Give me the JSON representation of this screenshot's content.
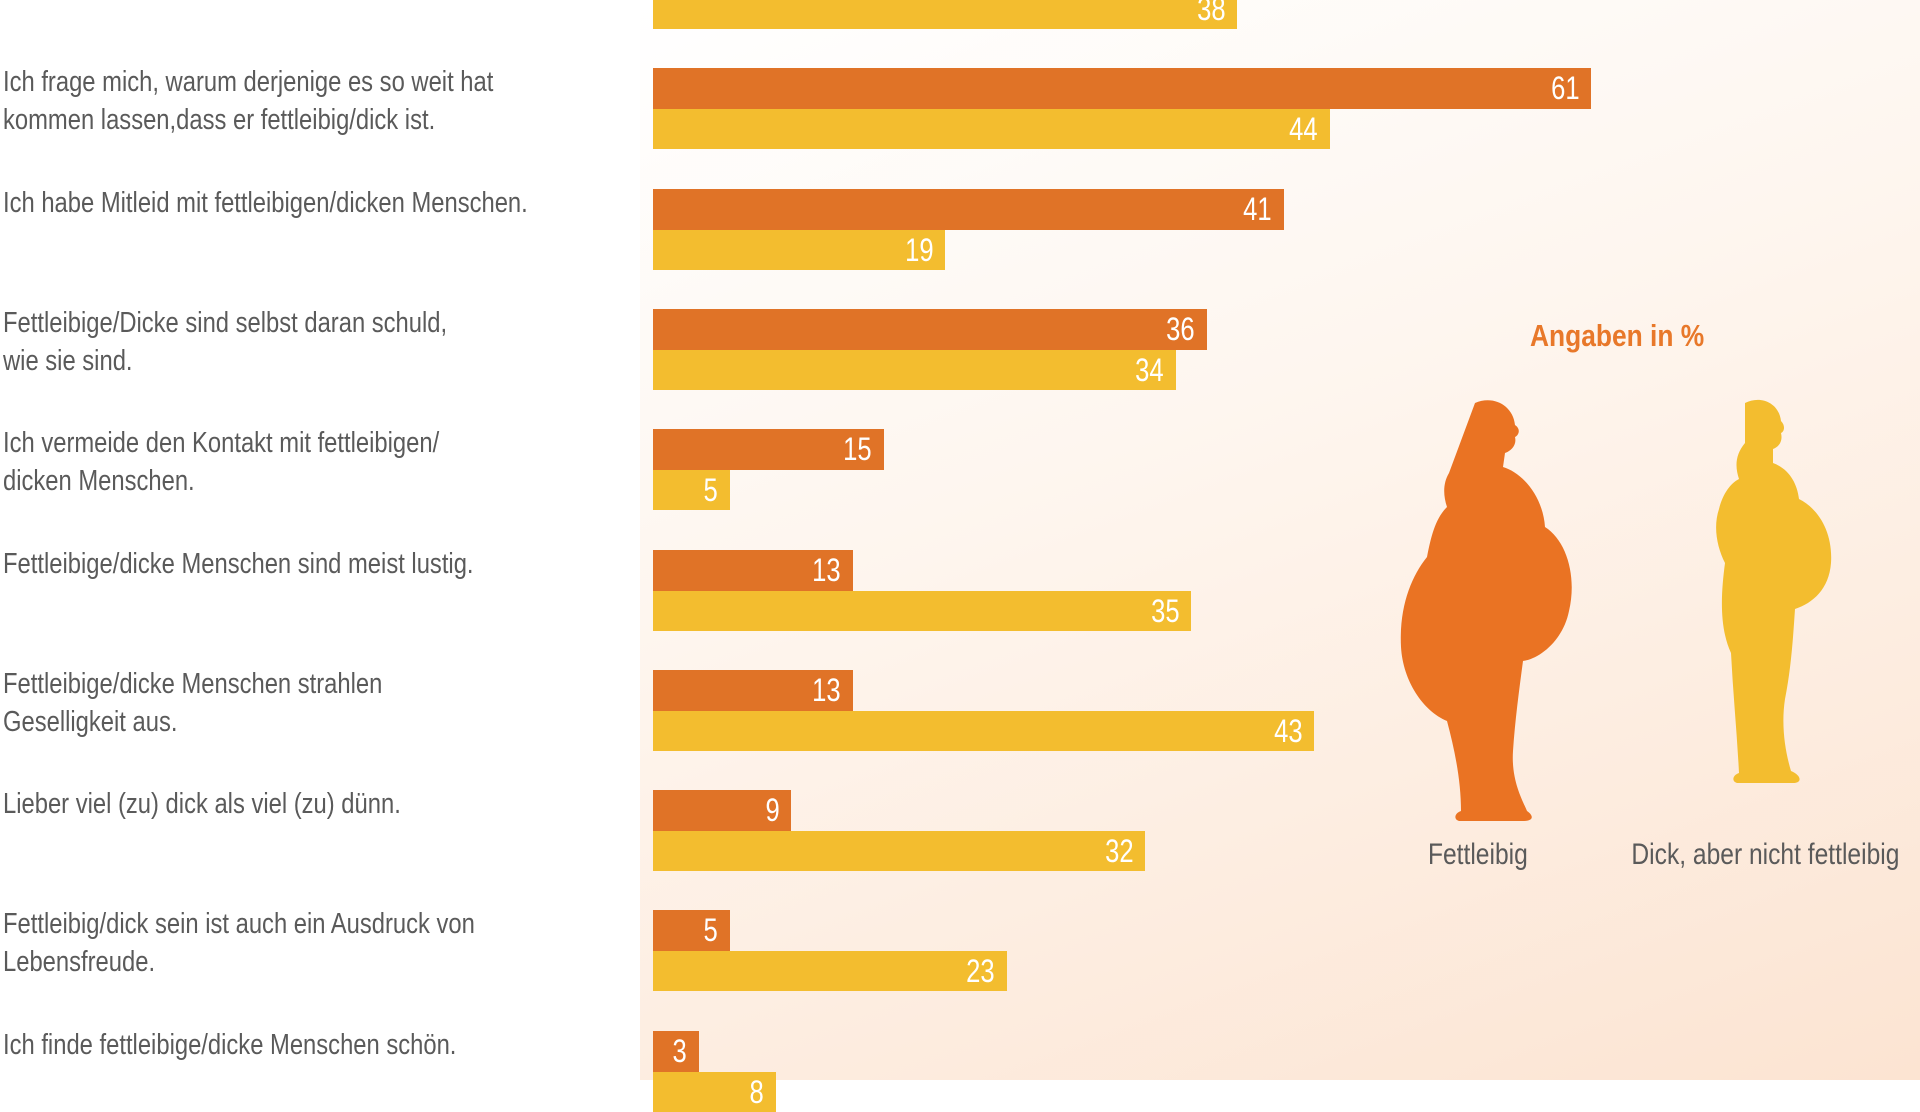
{
  "chart_data": {
    "type": "bar",
    "orientation": "horizontal",
    "legend_title": "Angaben in %",
    "series": [
      {
        "name": "Fettleibig",
        "color": "#e07327",
        "values": [
          null,
          61,
          41,
          36,
          15,
          13,
          13,
          9,
          5,
          3
        ]
      },
      {
        "name": "Dick, aber nicht fettleibig",
        "color": "#f3bd2f",
        "values": [
          38,
          44,
          19,
          34,
          5,
          35,
          43,
          32,
          23,
          8
        ]
      }
    ],
    "categories": [
      [],
      [
        "Ich frage mich, warum derjenige es so weit hat",
        "kommen lassen,dass er fettleibig/dick ist."
      ],
      [
        "Ich habe Mitleid mit fettleibigen/dicken Menschen."
      ],
      [
        "Fettleibige/Dicke sind selbst daran schuld,",
        " wie sie sind."
      ],
      [
        "Ich vermeide den Kontakt mit fettleibigen/",
        " dicken Menschen."
      ],
      [
        "Fettleibige/dicke Menschen sind meist lustig."
      ],
      [
        "Fettleibige/dicke Menschen strahlen",
        "Geselligkeit aus."
      ],
      [
        "Lieber viel (zu) dick als viel (zu) dünn."
      ],
      [
        "Fettleibig/dick sein ist auch ein Ausdruck von",
        "Lebensfreude."
      ],
      [
        "Ich finde fettleibige/dicke Menschen schön."
      ]
    ]
  }
}
